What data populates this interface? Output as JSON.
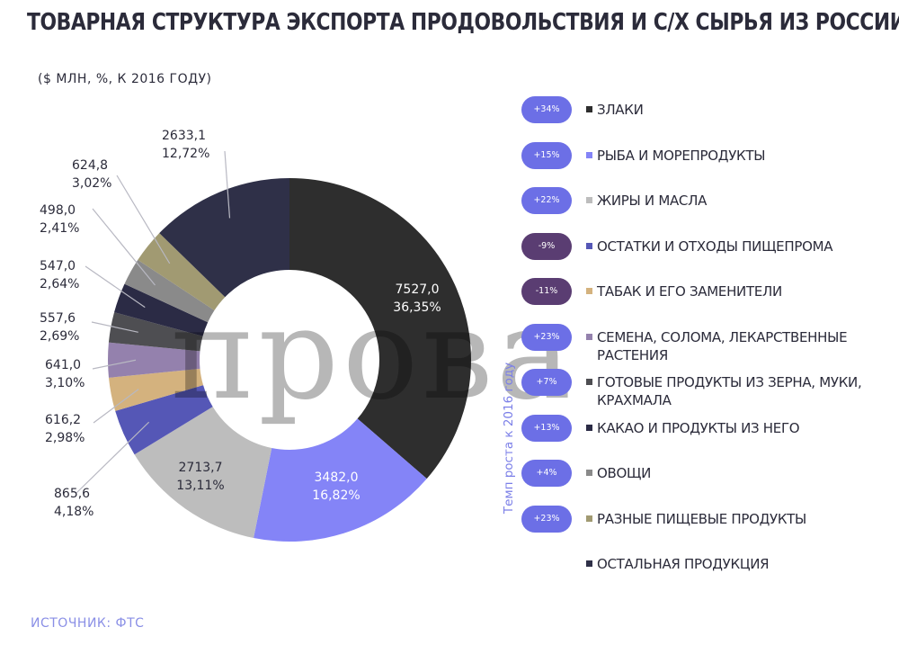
{
  "header": {
    "title": "ТОВАРНАЯ СТРУКТУРА ЭКСПОРТА ПРОДОВОЛЬСТВИЯ И С/Х СЫРЬЯ ИЗ РОССИИ",
    "subtitle": "($ МЛН, %, К 2016 ГОДУ)"
  },
  "footer": {
    "source": "ИСТОЧНИК: ФТС"
  },
  "watermark": {
    "text": "прова"
  },
  "growth_axis_label": "Темп роста к 2016 году",
  "colors": {
    "title": "#2b2b3a",
    "accent": "#6c6fe6",
    "badge_positive": "#6c6fe6",
    "badge_negative": "#5a3d72"
  },
  "chart_data": {
    "type": "pie",
    "subtype": "donut",
    "unit": "$ млн",
    "slices": [
      {
        "label": "ЗЛАКИ",
        "value": 7527.0,
        "value_label": "7527,0",
        "percent_label": "36,35%",
        "growth": "+34%",
        "color": "#2e2e2e"
      },
      {
        "label": "РЫБА И МОРЕПРОДУКТЫ",
        "value": 3482.0,
        "value_label": "3482,0",
        "percent_label": "16,82%",
        "growth": "+15%",
        "color": "#8484f7"
      },
      {
        "label": "ЖИРЫ И МАСЛА",
        "value": 2713.7,
        "value_label": "2713,7",
        "percent_label": "13,11%",
        "growth": "+22%",
        "color": "#bdbdbd"
      },
      {
        "label": "ОСТАТКИ И ОТХОДЫ ПИЩЕПРОМА",
        "value": 865.6,
        "value_label": "865,6",
        "percent_label": "4,18%",
        "growth": "-9%",
        "color": "#5557b6"
      },
      {
        "label": "ТАБАК И ЕГО ЗАМЕНИТЕЛИ",
        "value": 616.2,
        "value_label": "616,2",
        "percent_label": "2,98%",
        "growth": "-11%",
        "color": "#d4b27e"
      },
      {
        "label": "СЕМЕНА, СОЛОМА, ЛЕКАРСТВЕННЫЕ РАСТЕНИЯ",
        "value": 641.0,
        "value_label": "641,0",
        "percent_label": "3,10%",
        "growth": "+23%",
        "color": "#9481ad"
      },
      {
        "label": "ГОТОВЫЕ ПРОДУКТЫ ИЗ ЗЕРНА, МУКИ, КРАХМАЛА",
        "value": 557.6,
        "value_label": "557,6",
        "percent_label": "2,69%",
        "growth": "+7%",
        "color": "#4e4e52"
      },
      {
        "label": "КАКАО И ПРОДУКТЫ ИЗ НЕГО",
        "value": 547.0,
        "value_label": "547,0",
        "percent_label": "2,64%",
        "growth": "+13%",
        "color": "#2b2b45"
      },
      {
        "label": "ОВОЩИ",
        "value": 498.0,
        "value_label": "498,0",
        "percent_label": "2,41%",
        "growth": "+4%",
        "color": "#8a8a8a"
      },
      {
        "label": "РАЗНЫЕ ПИЩЕВЫЕ ПРОДУКТЫ",
        "value": 624.8,
        "value_label": "624,8",
        "percent_label": "3,02%",
        "growth": "+23%",
        "color": "#a19a72"
      },
      {
        "label": "ОСТАЛЬНАЯ ПРОДУКЦИЯ",
        "value": 2633.1,
        "value_label": "2633,1",
        "percent_label": "12,72%",
        "growth": "",
        "color": "#2f3048"
      }
    ]
  }
}
